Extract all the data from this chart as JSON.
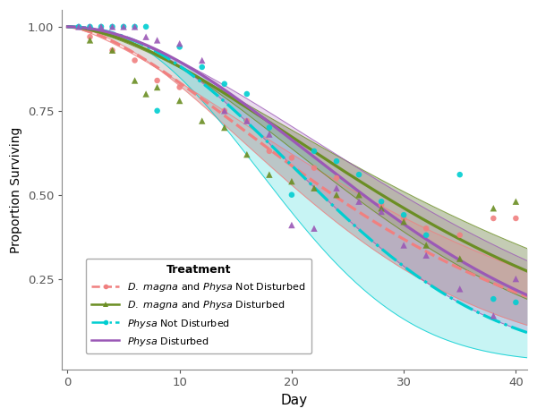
{
  "xlabel": "Day",
  "ylabel": "Proportion Surviving",
  "xlim": [
    -0.5,
    41
  ],
  "ylim": [
    -0.02,
    1.05
  ],
  "xticks": [
    0,
    10,
    20,
    30,
    40
  ],
  "yticks": [
    0.25,
    0.5,
    0.75,
    1.0
  ],
  "background": "#ffffff",
  "col_dm_nd": "#F08080",
  "col_dm_d": "#6B8E23",
  "col_pnd": "#00CED1",
  "col_pd": "#9B59B6",
  "col_gray": "#999999",
  "curves": {
    "dm_nd": {
      "scale": 30,
      "shape": 1.55,
      "scale_hi": 34,
      "shape_hi": 1.4,
      "scale_lo": 26,
      "shape_lo": 1.72
    },
    "dm_d": {
      "scale": 35,
      "shape": 1.65,
      "scale_hi": 39,
      "shape_hi": 1.5,
      "scale_lo": 31,
      "shape_lo": 1.82
    },
    "pnd": {
      "scale": 27,
      "shape": 2.1,
      "scale_hi": 32,
      "shape_hi": 1.9,
      "scale_lo": 22,
      "shape_lo": 2.3
    },
    "pd": {
      "scale": 32,
      "shape": 1.9,
      "scale_hi": 37,
      "shape_hi": 1.7,
      "scale_lo": 27,
      "shape_lo": 2.1
    }
  },
  "dm_nd_x": [
    2,
    4,
    6,
    8,
    10,
    14,
    16,
    18,
    20,
    22,
    24,
    28,
    30,
    32,
    35,
    38,
    40
  ],
  "dm_nd_y": [
    0.97,
    0.93,
    0.9,
    0.84,
    0.82,
    0.75,
    0.72,
    0.63,
    0.61,
    0.58,
    0.55,
    0.47,
    0.43,
    0.4,
    0.38,
    0.43,
    0.43
  ],
  "dm_d_x": [
    2,
    4,
    6,
    7,
    8,
    10,
    12,
    14,
    16,
    18,
    20,
    22,
    24,
    26,
    28,
    30,
    32,
    35,
    38,
    40
  ],
  "dm_d_y": [
    0.96,
    0.93,
    0.84,
    0.8,
    0.82,
    0.78,
    0.72,
    0.7,
    0.62,
    0.56,
    0.54,
    0.52,
    0.5,
    0.5,
    0.46,
    0.42,
    0.35,
    0.31,
    0.46,
    0.48
  ],
  "pnd_x": [
    1,
    2,
    3,
    4,
    5,
    6,
    7,
    8,
    10,
    12,
    14,
    16,
    18,
    20,
    22,
    24,
    26,
    28,
    30,
    32,
    35,
    38,
    40
  ],
  "pnd_y": [
    1.0,
    1.0,
    1.0,
    1.0,
    1.0,
    1.0,
    1.0,
    0.75,
    0.94,
    0.88,
    0.83,
    0.8,
    0.7,
    0.5,
    0.63,
    0.6,
    0.56,
    0.48,
    0.44,
    0.38,
    0.56,
    0.19,
    0.18
  ],
  "pd_x": [
    1,
    2,
    3,
    4,
    5,
    6,
    7,
    8,
    10,
    12,
    14,
    16,
    18,
    20,
    22,
    24,
    26,
    28,
    30,
    32,
    35,
    38,
    40
  ],
  "pd_y": [
    1.0,
    1.0,
    1.0,
    1.0,
    1.0,
    1.0,
    0.97,
    0.96,
    0.95,
    0.9,
    0.75,
    0.72,
    0.68,
    0.41,
    0.4,
    0.52,
    0.48,
    0.45,
    0.35,
    0.32,
    0.22,
    0.14,
    0.25
  ],
  "legend_labels": [
    "$\\it{D.\\ magna}$ and $\\it{Physa}$ Not Disturbed",
    "$\\it{D.\\ magna}$ and $\\it{Physa}$ Disturbed",
    "$\\it{Physa}$ Not Disturbed",
    "$\\it{Physa}$ Disturbed"
  ],
  "figsize": [
    6.0,
    4.66
  ],
  "dpi": 100
}
